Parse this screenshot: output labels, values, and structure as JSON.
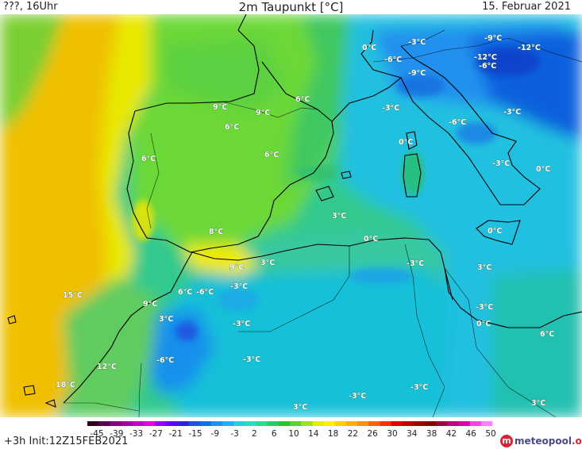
{
  "header": {
    "left": "???, 16Uhr",
    "title": "2m Taupunkt [°C]",
    "date": "15. Februar 2021"
  },
  "footer": {
    "init": "+3h  Init:12Z15FEB2021",
    "logo_text": "meteopool",
    "logo_suffix": ".org"
  },
  "colorbar": {
    "ticks": [
      "-45",
      "-39",
      "-33",
      "-27",
      "-21",
      "-15",
      "-9",
      "-3",
      "2",
      "6",
      "10",
      "14",
      "18",
      "22",
      "26",
      "30",
      "34",
      "38",
      "42",
      "46",
      "50"
    ],
    "colors": [
      "#300020",
      "#5a0050",
      "#800080",
      "#a000a0",
      "#c000c0",
      "#e000e0",
      "#9000ff",
      "#6000ff",
      "#3020e0",
      "#2050e0",
      "#1070f0",
      "#2090ff",
      "#20b0ff",
      "#20d0e0",
      "#20e0c0",
      "#20e090",
      "#20d060",
      "#30c030",
      "#60d030",
      "#a0e020",
      "#e0f000",
      "#fff000",
      "#ffd000",
      "#ffb000",
      "#ff9000",
      "#ff6000",
      "#ff3000",
      "#e00000",
      "#c00000",
      "#a00000",
      "#800000",
      "#a00040",
      "#c00080",
      "#e000b0",
      "#ff40e0",
      "#ff80ff"
    ]
  },
  "labels": [
    {
      "text": "9°C"
    },
    {
      "text": "9°C"
    },
    {
      "text": "6°C"
    },
    {
      "text": "6°C"
    },
    {
      "text": "6°C"
    },
    {
      "text": "6°C"
    },
    {
      "text": "3°C"
    },
    {
      "text": "8°C"
    },
    {
      "text": "0°C"
    },
    {
      "text": "3°C"
    },
    {
      "text": "9°C"
    },
    {
      "text": "-3°C"
    },
    {
      "text": "0°C"
    },
    {
      "text": "-3°C"
    },
    {
      "text": "-6°C"
    },
    {
      "text": "-9°C"
    },
    {
      "text": "-9°C"
    },
    {
      "text": "-12°C"
    },
    {
      "text": "-6°C"
    },
    {
      "text": "-12°C"
    },
    {
      "text": "-3°C"
    },
    {
      "text": "-6°C"
    },
    {
      "text": "-3°C"
    },
    {
      "text": "0°C"
    },
    {
      "text": "-3°C"
    },
    {
      "text": "0°C"
    },
    {
      "text": "3°C"
    },
    {
      "text": "0°C"
    },
    {
      "text": "-3°C"
    },
    {
      "text": "0°C"
    },
    {
      "text": "6°C"
    },
    {
      "text": "-3°C"
    },
    {
      "text": "3°C"
    },
    {
      "text": "-3°C"
    },
    {
      "text": "-3°C"
    },
    {
      "text": "-3°C"
    },
    {
      "text": "-3°C"
    },
    {
      "text": "3°C"
    },
    {
      "text": "15°C"
    },
    {
      "text": "9°C"
    },
    {
      "text": "6°C"
    },
    {
      "text": "-6°C"
    },
    {
      "text": "3°C"
    },
    {
      "text": "-6°C"
    },
    {
      "text": "12°C"
    },
    {
      "text": "18°C"
    }
  ]
}
